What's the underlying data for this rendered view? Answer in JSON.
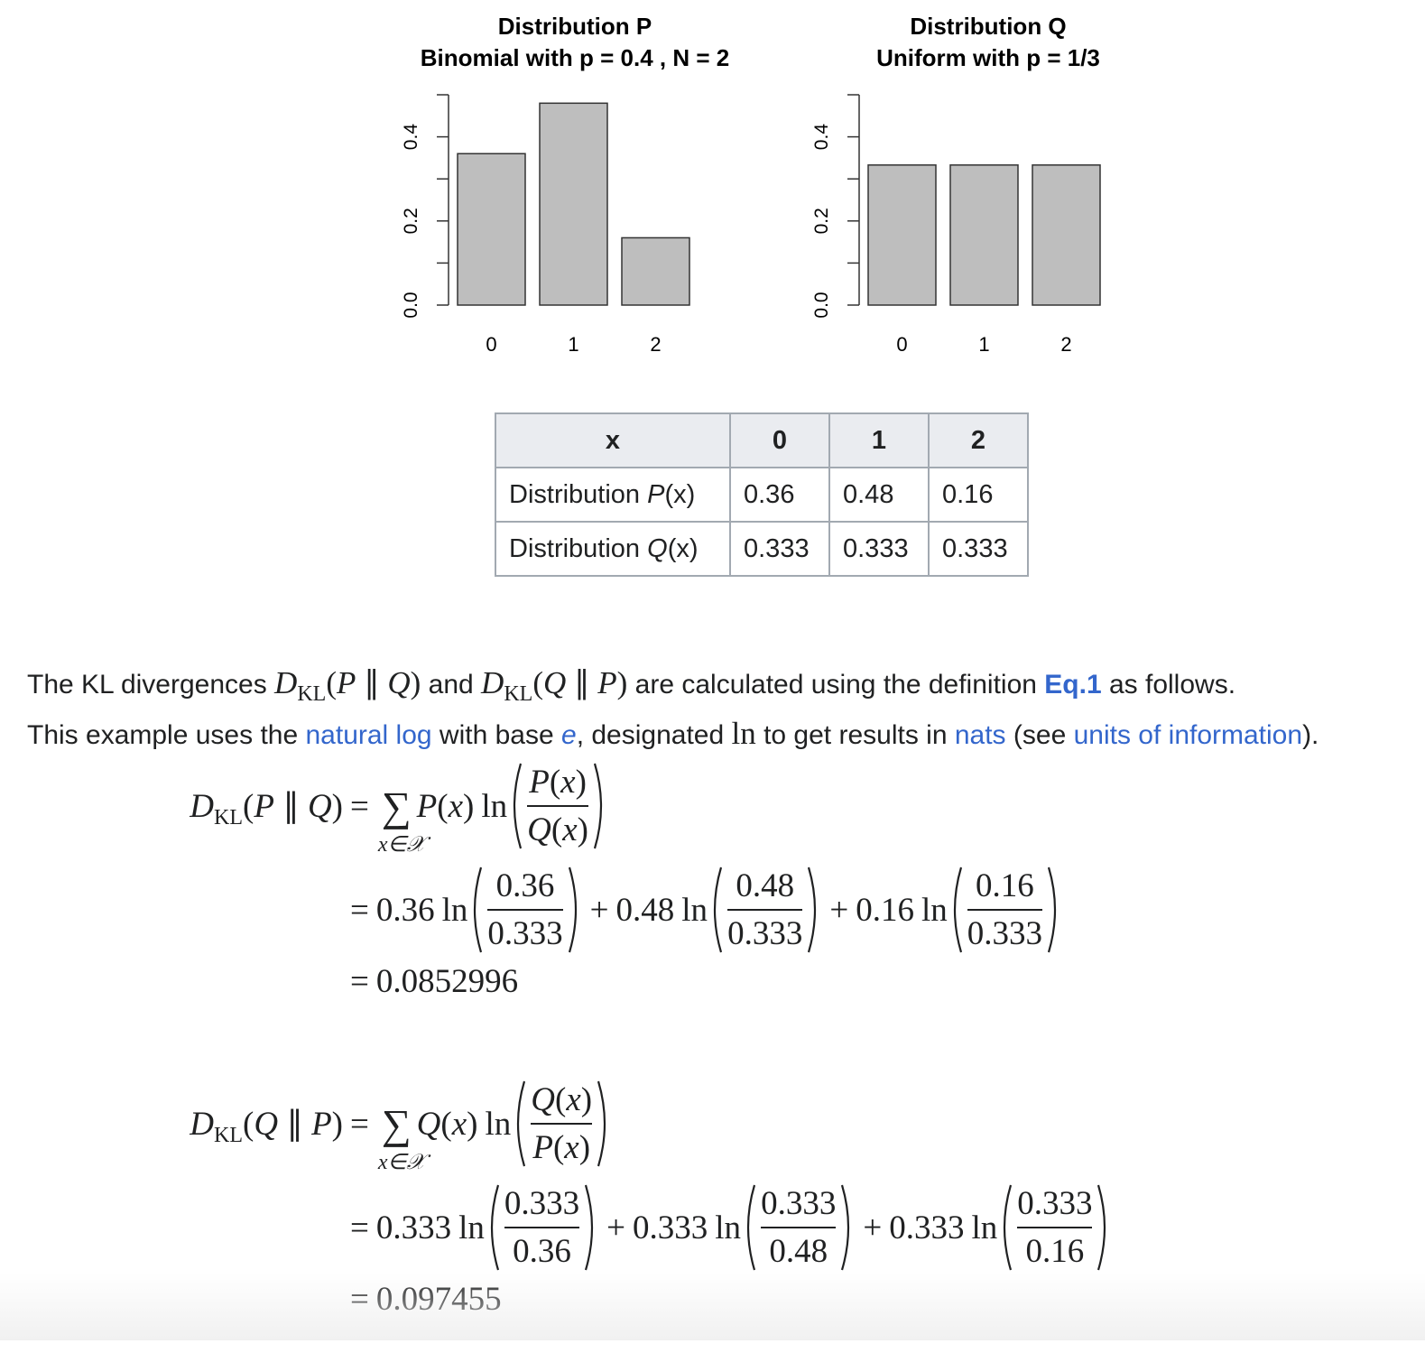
{
  "chart_data": [
    {
      "type": "bar",
      "title": "Distribution P",
      "subtitle": "Binomial with p = 0.4 , N = 2",
      "categories": [
        "0",
        "1",
        "2"
      ],
      "values": [
        0.36,
        0.48,
        0.16
      ],
      "color": "#bebebe",
      "ylim": [
        0,
        0.5
      ],
      "yticks": [
        {
          "value": 0,
          "label": "0.0"
        },
        0.2,
        0.4
      ],
      "minor_yticks": [
        0.1,
        0.3,
        0.5
      ]
    },
    {
      "type": "bar",
      "title": "Distribution Q",
      "subtitle": "Uniform with p = 1/3",
      "categories": [
        "0",
        "1",
        "2"
      ],
      "values": [
        0.333,
        0.333,
        0.333
      ],
      "color": "#bebebe",
      "ylim": [
        0,
        0.5
      ],
      "yticks": [
        {
          "value": 0,
          "label": "0.0"
        },
        0.2,
        0.4
      ],
      "minor_yticks": [
        0.1,
        0.3,
        0.5
      ]
    }
  ],
  "table": {
    "header": [
      "x",
      0,
      1,
      2
    ],
    "rows": [
      {
        "label": [
          "Distribution ",
          "P",
          "(x)"
        ],
        "cells": [
          0.36,
          0.48,
          0.16
        ]
      },
      {
        "label": [
          "Distribution ",
          "Q",
          "(x)"
        ],
        "cells": [
          0.333,
          0.333,
          0.333
        ]
      }
    ]
  },
  "paragraph": {
    "lines": [
      [
        {
          "text": "The KL divergences "
        },
        {
          "math": {
            "d": "D",
            "sub": "KL",
            "arg": "(P ∥ Q)"
          }
        },
        {
          "text": " and "
        },
        {
          "math": {
            "d": "D",
            "sub": "KL",
            "arg": "(Q ∥ P)"
          }
        },
        {
          "text": " are calculated using the definition "
        },
        {
          "text": "Eq.1",
          "style": "bold-link"
        },
        {
          "text": " as follows."
        }
      ],
      [
        {
          "text": "This example uses the "
        },
        {
          "text": "natural log",
          "style": "link"
        },
        {
          "text": " with base "
        },
        {
          "text": "e",
          "style": "italic-link"
        },
        {
          "text": ", designated "
        },
        {
          "text": "ln",
          "style": "math"
        },
        {
          "text": " to get results in "
        },
        {
          "text": "nats",
          "style": "link"
        },
        {
          "text": " (see "
        },
        {
          "text": "units of information",
          "style": "link"
        },
        {
          "text": ")."
        }
      ]
    ]
  },
  "symbols": {
    "eq": "=",
    "plus": "+",
    "ln": "ln",
    "sum": "∑"
  },
  "equations": [
    {
      "lhs": {
        "d": "D",
        "sub": "KL",
        "arg": "(P ∥ Q)"
      },
      "sum_under": "x∈𝒳",
      "term": "P(x)",
      "num": "P(x)",
      "den": "Q(x)",
      "expansion": [
        {
          "coef": 0.36,
          "num": 0.36,
          "den": 0.333
        },
        {
          "coef": 0.48,
          "num": 0.48,
          "den": 0.333
        },
        {
          "coef": 0.16,
          "num": 0.16,
          "den": 0.333
        }
      ],
      "result": 0.0852996
    },
    {
      "lhs": {
        "d": "D",
        "sub": "KL",
        "arg": "(Q ∥ P)"
      },
      "sum_under": "x∈𝒳",
      "term": "Q(x)",
      "num": "Q(x)",
      "den": "P(x)",
      "expansion": [
        {
          "coef": 0.333,
          "num": 0.333,
          "den": 0.36
        },
        {
          "coef": 0.333,
          "num": 0.333,
          "den": 0.48
        },
        {
          "coef": 0.333,
          "num": 0.333,
          "den": 0.16
        }
      ],
      "result": 0.097455
    }
  ]
}
